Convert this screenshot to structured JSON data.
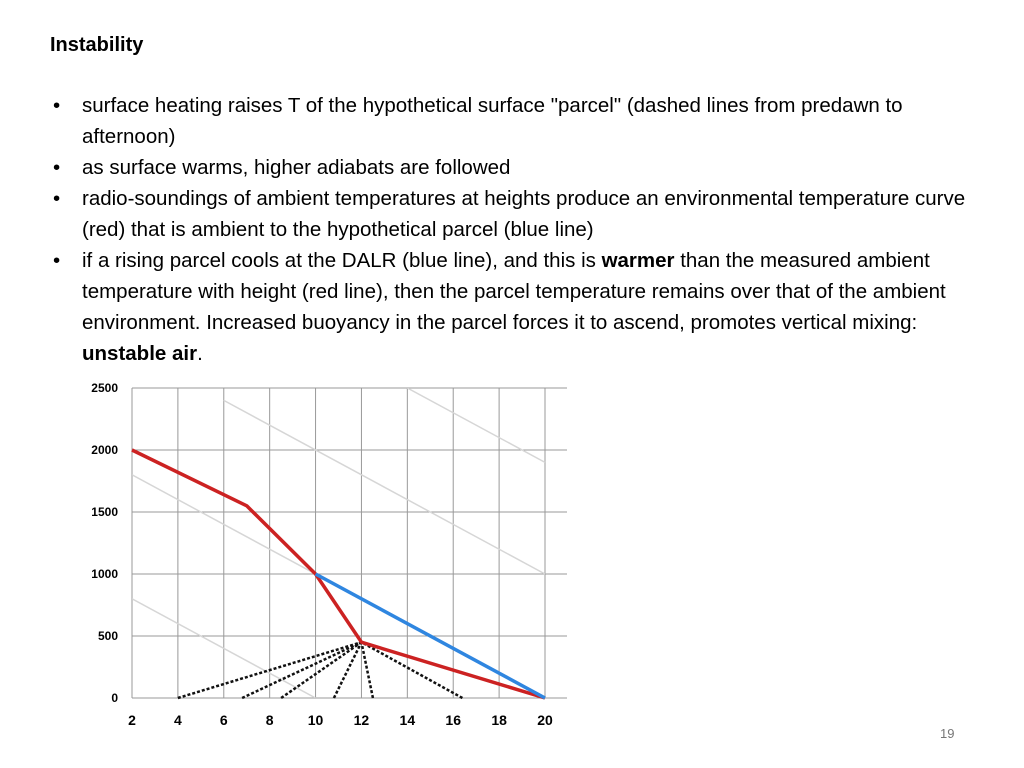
{
  "slide": {
    "title": "Instability",
    "bullets": [
      {
        "parts": [
          {
            "text": "surface heating raises T of the hypothetical surface \"parcel\" (dashed lines from predawn to afternoon)",
            "bold": false
          }
        ]
      },
      {
        "parts": [
          {
            "text": "as surface warms, higher adiabats are followed",
            "bold": false
          }
        ]
      },
      {
        "parts": [
          {
            "text": "radio-soundings of ambient temperatures at heights produce an environmental temperature curve (red) that is ambient to the hypothetical parcel (blue line)",
            "bold": false
          }
        ]
      },
      {
        "parts": [
          {
            "text": "if a rising parcel cools at the DALR (blue line), and this is ",
            "bold": false
          },
          {
            "text": "warmer",
            "bold": true
          },
          {
            "text": " than the measured ambient temperature with height (red line), then the parcel temperature remains over that of the ambient environment. Increased buoyancy in the parcel forces it to ascend, promotes vertical mixing: ",
            "bold": false
          },
          {
            "text": "unstable air",
            "bold": true
          },
          {
            "text": ".",
            "bold": false
          }
        ]
      }
    ],
    "page_number": "19"
  },
  "chart_data": {
    "type": "line",
    "title": "",
    "xlabel": "",
    "ylabel": "",
    "xlim": [
      2,
      20
    ],
    "ylim": [
      0,
      2500
    ],
    "x_ticks": [
      2,
      4,
      6,
      8,
      10,
      12,
      14,
      16,
      18,
      20
    ],
    "y_ticks": [
      0,
      500,
      1000,
      1500,
      2000,
      2500
    ],
    "grid": true,
    "colors": {
      "environment": "#cc2222",
      "parcel": "#2f86e0",
      "dashed": "#111111",
      "adiabat": "#d6d6d6",
      "grid": "#999999"
    },
    "series": [
      {
        "key": "environment",
        "points": [
          [
            2,
            2000
          ],
          [
            7,
            1550
          ],
          [
            10,
            1000
          ],
          [
            12,
            450
          ],
          [
            20,
            0
          ]
        ]
      },
      {
        "key": "parcel",
        "points": [
          [
            10,
            1000
          ],
          [
            20,
            0
          ]
        ]
      }
    ],
    "dashed_lines": [
      [
        [
          4,
          0
        ],
        [
          12,
          450
        ]
      ],
      [
        [
          6.8,
          0
        ],
        [
          12,
          450
        ]
      ],
      [
        [
          8.5,
          0
        ],
        [
          12,
          450
        ]
      ],
      [
        [
          10.8,
          0
        ],
        [
          12,
          450
        ]
      ],
      [
        [
          12.5,
          0
        ],
        [
          12,
          450
        ]
      ],
      [
        [
          16.4,
          0
        ],
        [
          12,
          450
        ]
      ]
    ],
    "dry_adiabats": [
      [
        [
          2,
          800
        ],
        [
          10,
          0
        ]
      ],
      [
        [
          2,
          1800
        ],
        [
          20,
          0
        ]
      ],
      [
        [
          6,
          2400
        ],
        [
          20,
          1000
        ]
      ],
      [
        [
          14,
          2500
        ],
        [
          20,
          1900
        ]
      ]
    ]
  }
}
